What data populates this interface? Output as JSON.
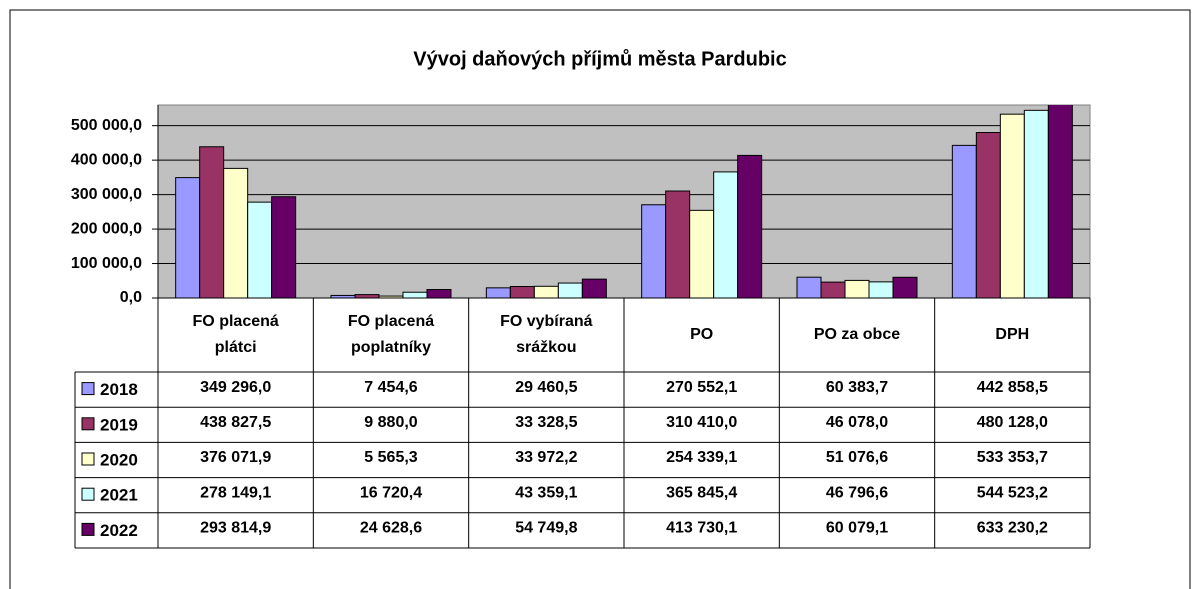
{
  "chart_data": {
    "type": "bar",
    "title": "Vývoj daňových příjmů města Pardubic",
    "categories": [
      "FO placená plátci",
      "FO placená poplatníky",
      "FO vybíraná srážkou",
      "PO",
      "PO za obce",
      "DPH"
    ],
    "series": [
      {
        "name": "2018",
        "color": "#9999ff",
        "values": [
          349296.0,
          7454.6,
          29460.5,
          270552.1,
          60383.7,
          442858.5
        ],
        "value_labels": [
          "349 296,0",
          "7 454,6",
          "29 460,5",
          "270 552,1",
          "60 383,7",
          "442 858,5"
        ]
      },
      {
        "name": "2019",
        "color": "#993366",
        "values": [
          438827.5,
          9880.0,
          33328.5,
          310410.0,
          46078.0,
          480128.0
        ],
        "value_labels": [
          "438 827,5",
          "9 880,0",
          "33 328,5",
          "310 410,0",
          "46 078,0",
          "480 128,0"
        ]
      },
      {
        "name": "2020",
        "color": "#ffffcc",
        "values": [
          376071.9,
          5565.3,
          33972.2,
          254339.1,
          51076.6,
          533353.7
        ],
        "value_labels": [
          "376 071,9",
          "5 565,3",
          "33 972,2",
          "254 339,1",
          "51 076,6",
          "533 353,7"
        ]
      },
      {
        "name": "2021",
        "color": "#ccffff",
        "values": [
          278149.1,
          16720.4,
          43359.1,
          365845.4,
          46796.6,
          544523.2
        ],
        "value_labels": [
          "278 149,1",
          "16 720,4",
          "43 359,1",
          "365 845,4",
          "46 796,6",
          "544 523,2"
        ]
      },
      {
        "name": "2022",
        "color": "#660066",
        "values": [
          293814.9,
          24628.6,
          54749.8,
          413730.1,
          60079.1,
          633230.2
        ],
        "value_labels": [
          "293 814,9",
          "24 628,6",
          "54 749,8",
          "413 730,1",
          "60 079,1",
          "633 230,2"
        ]
      }
    ],
    "ylim": [
      0,
      560000
    ],
    "yticks": [
      {
        "value": 0,
        "label": "0,0"
      },
      {
        "value": 100000,
        "label": "100 000,0"
      },
      {
        "value": 200000,
        "label": "200 000,0"
      },
      {
        "value": 300000,
        "label": "300 000,0"
      },
      {
        "value": 400000,
        "label": "400 000,0"
      },
      {
        "value": 500000,
        "label": "500 000,0"
      }
    ],
    "grid": true,
    "plot_background": "#c0c0c0"
  }
}
